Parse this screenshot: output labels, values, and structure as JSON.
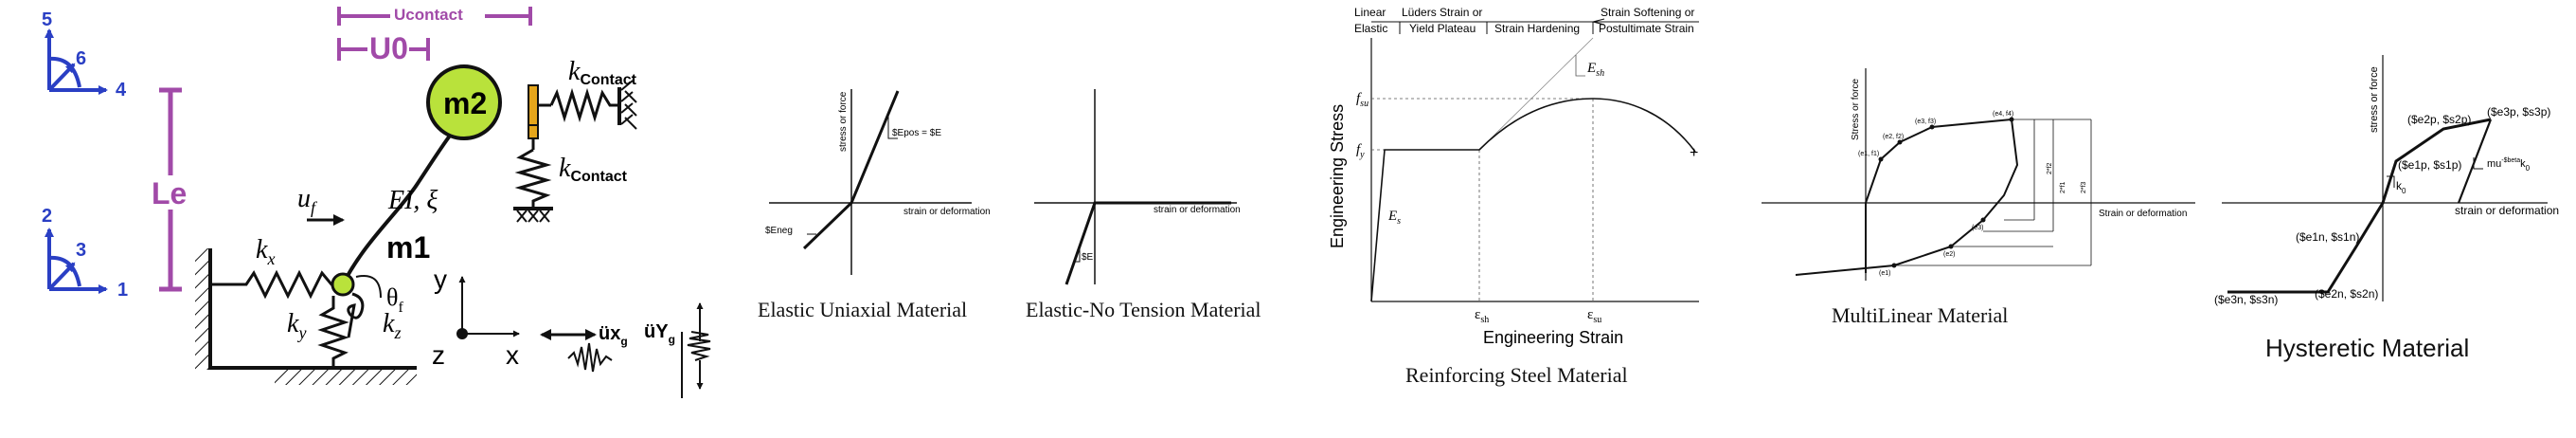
{
  "model": {
    "axes_rot_top": [
      "5",
      "6",
      "4"
    ],
    "axes_rot_bottom": [
      "2",
      "3",
      "1"
    ],
    "le": "Le",
    "ucontact": "Ucontact",
    "u0": "U0",
    "m2": "m2",
    "m1": "m1",
    "kcontact_top": "k",
    "kcontact_top_sub": "Contact",
    "kcontact_bottom": "k",
    "kcontact_bottom_sub": "Contact",
    "uf": "u",
    "uf_sub": "f",
    "ei": "EI, ξ",
    "kx": "k",
    "kx_sub": "x",
    "ky": "k",
    "ky_sub": "y",
    "kz": "k",
    "kz_sub": "z",
    "theta": "θ",
    "theta_sub": "f",
    "axis_y": "y",
    "axis_z": "z",
    "axis_x": "x",
    "uxg": "üx",
    "uxg_sub": "g",
    "uyg": "üY",
    "uyg_sub": "g"
  },
  "elastic": {
    "ylabel": "stress or force",
    "xlabel": "strain or deformation",
    "epos": "$Epos = $E",
    "eneg": "$Eneg",
    "caption": "Elastic Uniaxial Material"
  },
  "ent": {
    "xlabel": "strain or deformation",
    "e": "$E",
    "caption": "Elastic-No Tension Material"
  },
  "steel": {
    "h_linear": "Linear",
    "h_elastic": "Elastic",
    "h_luders": "Lüders Strain or",
    "h_yield": "Yield Plateau",
    "h_hardening": "Strain Hardening",
    "h_softening": "Strain Softening or",
    "h_postult": "Postultimate Strain",
    "fsu": "f",
    "fsu_sub": "su",
    "fy": "f",
    "fy_sub": "y",
    "es": "E",
    "es_sub": "s",
    "esh": "E",
    "esh_sub": "sh",
    "eps_sh": "ε",
    "eps_sh_sub": "sh",
    "eps_su": "ε",
    "eps_su_sub": "su",
    "ylabel": "Engineering Stress",
    "xlabel": "Engineering Strain",
    "caption": "Reinforcing Steel Material"
  },
  "multilinear": {
    "ylabel": "Stress or force",
    "xlabel": "Strain or deformation",
    "pts_pos": [
      "(e1, f1)",
      "(e2, f2)",
      "(e3, f3)",
      "(e4, f4)"
    ],
    "pts_neg": [
      "(e3)",
      "(e2)",
      "(e1)"
    ],
    "dims": [
      "2*f1",
      "2*f2",
      "2*f3"
    ],
    "caption": "MultiLinear Material"
  },
  "hysteretic": {
    "ylabel": "stress or force",
    "xlabel": "strain or deformation",
    "p1": "($e1p, $s1p)",
    "p2": "($e2p, $s2p)",
    "p3": "($e3p, $s3p)",
    "n1": "($e1n, $s1n)",
    "n2": "($e2n, $s2n)",
    "n3": "($e3n, $s3n)",
    "k0": "k",
    "k0_sub": "0",
    "mu": "mu",
    "mu_sup": "-$beta",
    "mu_k": "k",
    "mu_k_sub": "0",
    "caption": "Hysteretic Material"
  }
}
